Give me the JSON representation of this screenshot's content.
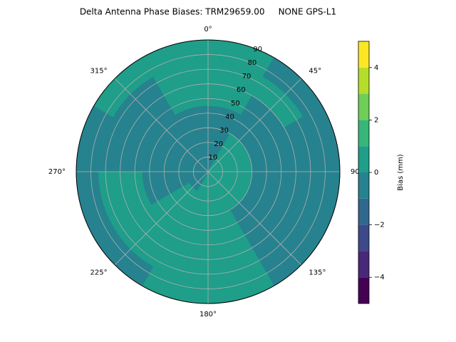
{
  "chart_data": {
    "type": "polar_contour",
    "title": "Delta Antenna Phase Biases: TRM29659.00     NONE GPS-L1",
    "colorbar_label": "Bias (mm)",
    "azimuth_bins": [
      0,
      30,
      60,
      90,
      120,
      150,
      180,
      210,
      240,
      270,
      300,
      330,
      360
    ],
    "zenith_bins": [
      0,
      15,
      30,
      45,
      60,
      75,
      90
    ],
    "values": [
      [
        -0.3,
        0.3,
        0.4,
        0.4,
        0.3,
        0.2,
        0.2,
        -0.2,
        -0.4,
        -0.4,
        -0.4,
        -0.3
      ],
      [
        -0.4,
        0.3,
        0.5,
        0.5,
        0.3,
        0.4,
        0.4,
        0.3,
        -0.3,
        -0.5,
        -0.5,
        -0.5
      ],
      [
        -0.5,
        -0.4,
        -0.3,
        -0.4,
        -0.2,
        0.5,
        0.5,
        0.5,
        -0.3,
        -0.5,
        -0.5,
        -0.5
      ],
      [
        0.3,
        -0.4,
        -0.5,
        -0.5,
        -0.3,
        0.5,
        0.5,
        0.5,
        0.3,
        -0.5,
        -0.5,
        0.2
      ],
      [
        0.5,
        0.3,
        -0.5,
        -0.5,
        -0.3,
        0.5,
        0.5,
        0.5,
        0.3,
        -0.5,
        -0.3,
        0.5
      ],
      [
        0.5,
        -0.3,
        -0.5,
        -0.5,
        -0.4,
        0.4,
        0.5,
        -0.3,
        -0.5,
        -0.5,
        0.3,
        0.5
      ]
    ],
    "levels": [
      -5,
      -4,
      -3,
      -2,
      -1,
      0,
      1,
      2,
      3,
      4,
      5
    ],
    "level_colors": [
      "#440154",
      "#482878",
      "#3e4989",
      "#31688e",
      "#26828e",
      "#1f9e89",
      "#35b779",
      "#6ece58",
      "#b5de2b",
      "#fde725"
    ],
    "rlim": [
      0,
      90
    ],
    "rticks": [
      10,
      20,
      30,
      40,
      50,
      60,
      70,
      80,
      90
    ],
    "thetaticks": [
      {
        "value": 0,
        "label": "0°"
      },
      {
        "value": 45,
        "label": "45°"
      },
      {
        "value": 90,
        "label": "90°"
      },
      {
        "value": 135,
        "label": "135°"
      },
      {
        "value": 180,
        "label": "180°"
      },
      {
        "value": 225,
        "label": "225°"
      },
      {
        "value": 270,
        "label": "270°"
      },
      {
        "value": 315,
        "label": "315°"
      }
    ],
    "cbar_lim": [
      -5,
      5
    ],
    "cbar_ticks": [
      {
        "value": -4,
        "label": "−4"
      },
      {
        "value": -2,
        "label": "−2"
      },
      0,
      2,
      4
    ],
    "grid": true
  }
}
